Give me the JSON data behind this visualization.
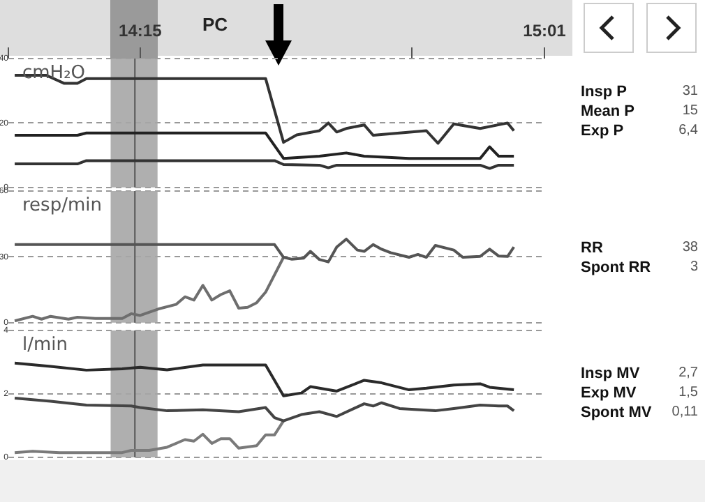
{
  "chart_data": [
    {
      "type": "line",
      "title": "PC",
      "ylabel": "cmH₂O",
      "xlim": [
        14.0,
        15.017
      ],
      "xticks": [
        {
          "value": 14.0,
          "label": null
        },
        {
          "value": 14.25,
          "label": "14:15"
        },
        {
          "value": 14.765,
          "label": null
        },
        {
          "value": 15.017,
          "label": "15:01"
        }
      ],
      "ylim": [
        0,
        40
      ],
      "yticks": [
        0,
        20,
        40
      ],
      "grid": "y",
      "legend": false,
      "marker": "none",
      "bands": [
        {
          "axis": "x",
          "from": 14.194,
          "to": 14.283,
          "color": "#a6a6a6"
        }
      ],
      "ref_lines": [
        {
          "axis": "x",
          "value": 14.24,
          "color": "#555555"
        }
      ],
      "annotations": [
        "Insp P",
        "31",
        "Mean P",
        "15",
        "Exp P",
        "6,4"
      ],
      "series": [
        {
          "color": "#333333",
          "x": [
            14.012,
            14.072,
            14.106,
            14.131,
            14.148,
            14.25,
            14.488,
            14.522,
            14.547,
            14.59,
            14.607,
            14.623,
            14.641,
            14.675,
            14.692,
            14.742,
            14.793,
            14.815,
            14.845,
            14.895,
            14.947,
            14.959
          ],
          "values": [
            34.8,
            34.8,
            32.3,
            32.3,
            33.8,
            33.8,
            33.8,
            14,
            16.3,
            17.6,
            20,
            17.2,
            18.3,
            19.4,
            16.2,
            16.9,
            17.6,
            13.7,
            19.7,
            18.3,
            20,
            17.6
          ]
        },
        {
          "color": "#222222",
          "x": [
            14.012,
            14.131,
            14.148,
            14.488,
            14.522,
            14.59,
            14.641,
            14.675,
            14.76,
            14.895,
            14.913,
            14.93,
            14.959
          ],
          "values": [
            16.2,
            16.2,
            16.9,
            16.9,
            9,
            9.7,
            10.7,
            9.7,
            9,
            9,
            12.6,
            9.7,
            9.7
          ]
        },
        {
          "color": "#333333",
          "x": [
            14.012,
            14.131,
            14.148,
            14.505,
            14.522,
            14.59,
            14.607,
            14.623,
            14.895,
            14.913,
            14.93,
            14.959
          ],
          "values": [
            7.3,
            7.3,
            8.3,
            8.3,
            7.1,
            6.9,
            6.1,
            6.9,
            6.9,
            5.9,
            6.9,
            6.9
          ]
        }
      ]
    },
    {
      "type": "line",
      "ylabel": "resp/min",
      "xlim": [
        14.0,
        15.017
      ],
      "ylim": [
        0,
        60
      ],
      "yticks": [
        0,
        30,
        60
      ],
      "grid": "y",
      "legend": false,
      "marker": "none",
      "tick_labels": "y",
      "bands": [
        {
          "axis": "x",
          "from": 14.194,
          "to": 14.283,
          "color": "#a6a6a6"
        }
      ],
      "ref_lines": [
        {
          "axis": "x",
          "value": 14.24,
          "color": "#555555"
        }
      ],
      "annotations": [
        "RR",
        "38",
        "Spont RR",
        "3"
      ],
      "series": [
        {
          "color": "#555555",
          "x": [
            14.012,
            14.505,
            14.522,
            14.538,
            14.56,
            14.573,
            14.59,
            14.607,
            14.623,
            14.641,
            14.662,
            14.675,
            14.692,
            14.708,
            14.725,
            14.76,
            14.777,
            14.793,
            14.81,
            14.845,
            14.862,
            14.895,
            14.913,
            14.93,
            14.947,
            14.959
          ],
          "values": [
            35.6,
            35.6,
            29.8,
            28.9,
            29.4,
            32.5,
            28.8,
            27.7,
            34.5,
            38.1,
            33.1,
            32.5,
            35.6,
            33.5,
            31.9,
            29.8,
            31.1,
            29.8,
            35.2,
            33.1,
            29.8,
            30.2,
            33.5,
            30.4,
            30.2,
            34.5
          ]
        },
        {
          "color": "#6e6e6e",
          "x": [
            14.012,
            14.046,
            14.063,
            14.08,
            14.114,
            14.131,
            14.165,
            14.216,
            14.233,
            14.25,
            14.284,
            14.318,
            14.335,
            14.352,
            14.369,
            14.386,
            14.403,
            14.42,
            14.437,
            14.454,
            14.471,
            14.488,
            14.522
          ],
          "values": [
            0.8,
            2.9,
            1.6,
            2.9,
            1.6,
            2.5,
            1.9,
            1.9,
            4.1,
            3.3,
            6.2,
            8.3,
            11.8,
            10.3,
            17,
            10.3,
            12.8,
            14.5,
            6.6,
            7,
            9.1,
            13.9,
            29.8
          ]
        }
      ]
    },
    {
      "type": "line",
      "ylabel": "l/min",
      "xlim": [
        14.0,
        15.017
      ],
      "ylim": [
        0,
        4
      ],
      "yticks": [
        0,
        2,
        4
      ],
      "grid": "y",
      "legend": false,
      "marker": "none",
      "tick_labels": "y",
      "bands": [
        {
          "axis": "x",
          "from": 14.194,
          "to": 14.283,
          "color": "#a6a6a6"
        }
      ],
      "ref_lines": [
        {
          "axis": "x",
          "value": 14.24,
          "color": "#555555"
        }
      ],
      "annotations": [
        "Insp MV",
        "2,7",
        "Exp MV",
        "1,5",
        "Spont MV",
        "0,11"
      ],
      "series": [
        {
          "color": "#2a2a2a",
          "x": [
            14.012,
            14.08,
            14.148,
            14.216,
            14.25,
            14.301,
            14.369,
            14.437,
            14.488,
            14.522,
            14.556,
            14.573,
            14.623,
            14.675,
            14.708,
            14.76,
            14.793,
            14.845,
            14.895,
            14.913,
            14.959
          ],
          "values": [
            2.97,
            2.87,
            2.75,
            2.79,
            2.84,
            2.76,
            2.91,
            2.91,
            2.91,
            1.94,
            2.03,
            2.23,
            2.09,
            2.43,
            2.35,
            2.13,
            2.18,
            2.28,
            2.32,
            2.21,
            2.13
          ]
        },
        {
          "color": "#444444",
          "x": [
            14.012,
            14.08,
            14.148,
            14.233,
            14.25,
            14.301,
            14.369,
            14.437,
            14.488,
            14.505,
            14.522,
            14.556,
            14.59,
            14.623,
            14.675,
            14.692,
            14.708,
            14.742,
            14.81,
            14.845,
            14.895,
            14.93,
            14.947,
            14.959
          ],
          "values": [
            1.87,
            1.77,
            1.65,
            1.62,
            1.57,
            1.47,
            1.5,
            1.44,
            1.57,
            1.25,
            1.15,
            1.35,
            1.44,
            1.29,
            1.69,
            1.62,
            1.72,
            1.54,
            1.47,
            1.54,
            1.65,
            1.62,
            1.62,
            1.47
          ]
        },
        {
          "color": "#7a7a7a",
          "x": [
            14.012,
            14.046,
            14.097,
            14.216,
            14.233,
            14.267,
            14.301,
            14.335,
            14.352,
            14.369,
            14.386,
            14.403,
            14.42,
            14.437,
            14.471,
            14.488,
            14.505,
            14.522
          ],
          "values": [
            0.15,
            0.19,
            0.15,
            0.15,
            0.22,
            0.22,
            0.32,
            0.56,
            0.51,
            0.73,
            0.44,
            0.59,
            0.59,
            0.29,
            0.37,
            0.71,
            0.71,
            1.15
          ]
        }
      ]
    }
  ]
}
